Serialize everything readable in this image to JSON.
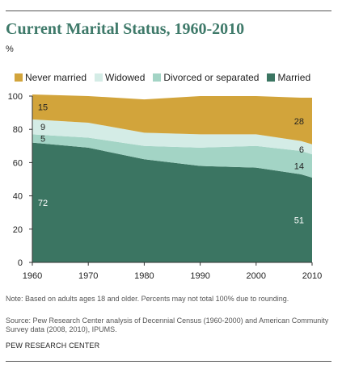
{
  "header": {
    "title": "Current Marital Status, 1960-2010",
    "unit": "%"
  },
  "footer": {
    "note": "Note: Based on adults ages 18 and older. Percents may not total 100% due to rounding.",
    "source": "Source: Pew Research Center analysis of Decennial Census (1960-2000) and American Community Survey  data (2008, 2010), IPUMS.",
    "org": "PEW RESEARCH CENTER"
  },
  "chart_data": {
    "type": "area",
    "title": "Current Marital Status, 1960-2010",
    "ylabel": "%",
    "xlabel": "",
    "x": [
      1960,
      1970,
      1980,
      1990,
      2000,
      2008,
      2010
    ],
    "xticks": [
      1960,
      1970,
      1980,
      1990,
      2000,
      2010
    ],
    "yticks": [
      0,
      20,
      40,
      60,
      80,
      100
    ],
    "xlim": [
      1960,
      2010
    ],
    "ylim": [
      0,
      100
    ],
    "stacked": true,
    "legend_position": "top",
    "grid": false,
    "series": [
      {
        "name": "Married",
        "color": "#3b7562",
        "values": [
          72,
          69,
          62,
          58,
          57,
          53,
          51
        ]
      },
      {
        "name": "Divorced or separated",
        "color": "#a3d4c5",
        "values": [
          5,
          6,
          8,
          11,
          13,
          14,
          14
        ]
      },
      {
        "name": "Widowed",
        "color": "#d4ece6",
        "values": [
          9,
          9,
          8,
          8,
          7,
          6,
          6
        ]
      },
      {
        "name": "Never married",
        "color": "#d2a43b",
        "values": [
          15,
          16,
          20,
          23,
          23,
          26,
          28
        ]
      }
    ],
    "legend_order": [
      "Never married",
      "Widowed",
      "Divorced or separated",
      "Married"
    ],
    "data_labels": [
      {
        "series": "Never married",
        "x": 1960,
        "text": "15"
      },
      {
        "series": "Widowed",
        "x": 1960,
        "text": "9"
      },
      {
        "series": "Divorced or separated",
        "x": 1960,
        "text": "5"
      },
      {
        "series": "Married",
        "x": 1960,
        "text": "72"
      },
      {
        "series": "Never married",
        "x": 2010,
        "text": "28"
      },
      {
        "series": "Widowed",
        "x": 2010,
        "text": "6"
      },
      {
        "series": "Divorced or separated",
        "x": 2010,
        "text": "14"
      },
      {
        "series": "Married",
        "x": 2010,
        "text": "51"
      }
    ]
  }
}
